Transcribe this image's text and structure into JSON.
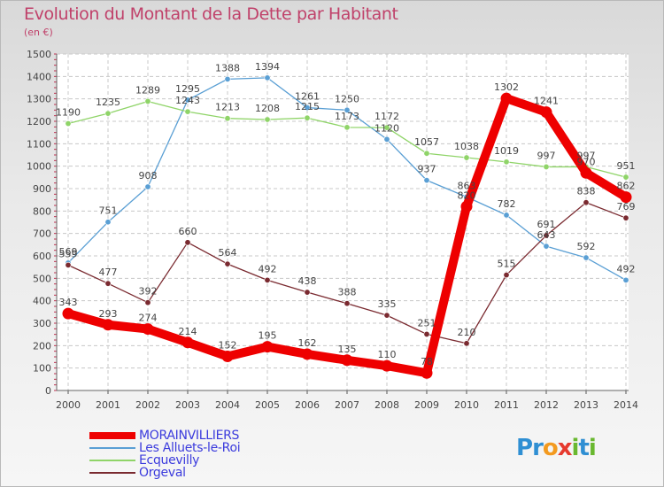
{
  "title": "Evolution du Montant de la Dette par Habitant",
  "unit": "(en €)",
  "brand": {
    "letters": [
      {
        "ch": "P",
        "color": "#2f8fd3"
      },
      {
        "ch": "r",
        "color": "#2f8fd3"
      },
      {
        "ch": "o",
        "color": "#f39a1f"
      },
      {
        "ch": "x",
        "color": "#e63a2e"
      },
      {
        "ch": "i",
        "color": "#69b82f"
      },
      {
        "ch": "t",
        "color": "#2f8fd3"
      },
      {
        "ch": "i",
        "color": "#69b82f"
      }
    ]
  },
  "chart_data": {
    "type": "line",
    "x": [
      "2000",
      "2001",
      "2002",
      "2003",
      "2004",
      "2005",
      "2006",
      "2007",
      "2008",
      "2009",
      "2010",
      "2011",
      "2012",
      "2013",
      "2014"
    ],
    "ylim": [
      0,
      1500
    ],
    "yticks": [
      0,
      100,
      200,
      300,
      400,
      500,
      600,
      700,
      800,
      900,
      1000,
      1100,
      1200,
      1300,
      1400,
      1500
    ],
    "grid": true,
    "legend_position": "bottom-left",
    "series": [
      {
        "name": "MORAINVILLIERS",
        "color": "#ee0000",
        "values": [
          343,
          293,
          274,
          214,
          152,
          195,
          162,
          135,
          110,
          78,
          820,
          1302,
          1241,
          970,
          862
        ],
        "labels": [
          "343",
          "293",
          "274",
          "214",
          "152",
          "195",
          "162",
          "135",
          "110",
          "78",
          "820",
          "1302",
          "1241",
          "970",
          "862"
        ]
      },
      {
        "name": "Les Alluets-le-Roi",
        "color": "#5a9fd4",
        "values": [
          569,
          751,
          908,
          1295,
          1388,
          1394,
          1261,
          1250,
          1120,
          937,
          863,
          782,
          643,
          592,
          492
        ],
        "labels": [
          "569",
          "751",
          "908",
          "1295",
          "1388",
          "1394",
          "1261",
          "1250",
          "1120",
          "937",
          "863",
          "782",
          "643",
          "592",
          "492"
        ]
      },
      {
        "name": "Ecquevilly",
        "color": "#8fd468",
        "values": [
          1190,
          1235,
          1289,
          1243,
          1213,
          1208,
          1215,
          1173,
          1172,
          1057,
          1038,
          1019,
          997,
          997,
          951
        ],
        "labels": [
          "1190",
          "1235",
          "1289",
          "1243",
          "1213",
          "1208",
          "1215",
          "1173",
          "1172",
          "1057",
          "1038",
          "1019",
          "997",
          "997",
          "951"
        ]
      },
      {
        "name": "Orgeval",
        "color": "#7a2a30",
        "values": [
          559,
          477,
          392,
          660,
          564,
          492,
          438,
          388,
          335,
          251,
          210,
          515,
          691,
          838,
          769
        ],
        "labels": [
          "559",
          "477",
          "392",
          "660",
          "564",
          "492",
          "438",
          "388",
          "335",
          "251",
          "210",
          "515",
          "691",
          "838",
          "769"
        ]
      }
    ]
  }
}
